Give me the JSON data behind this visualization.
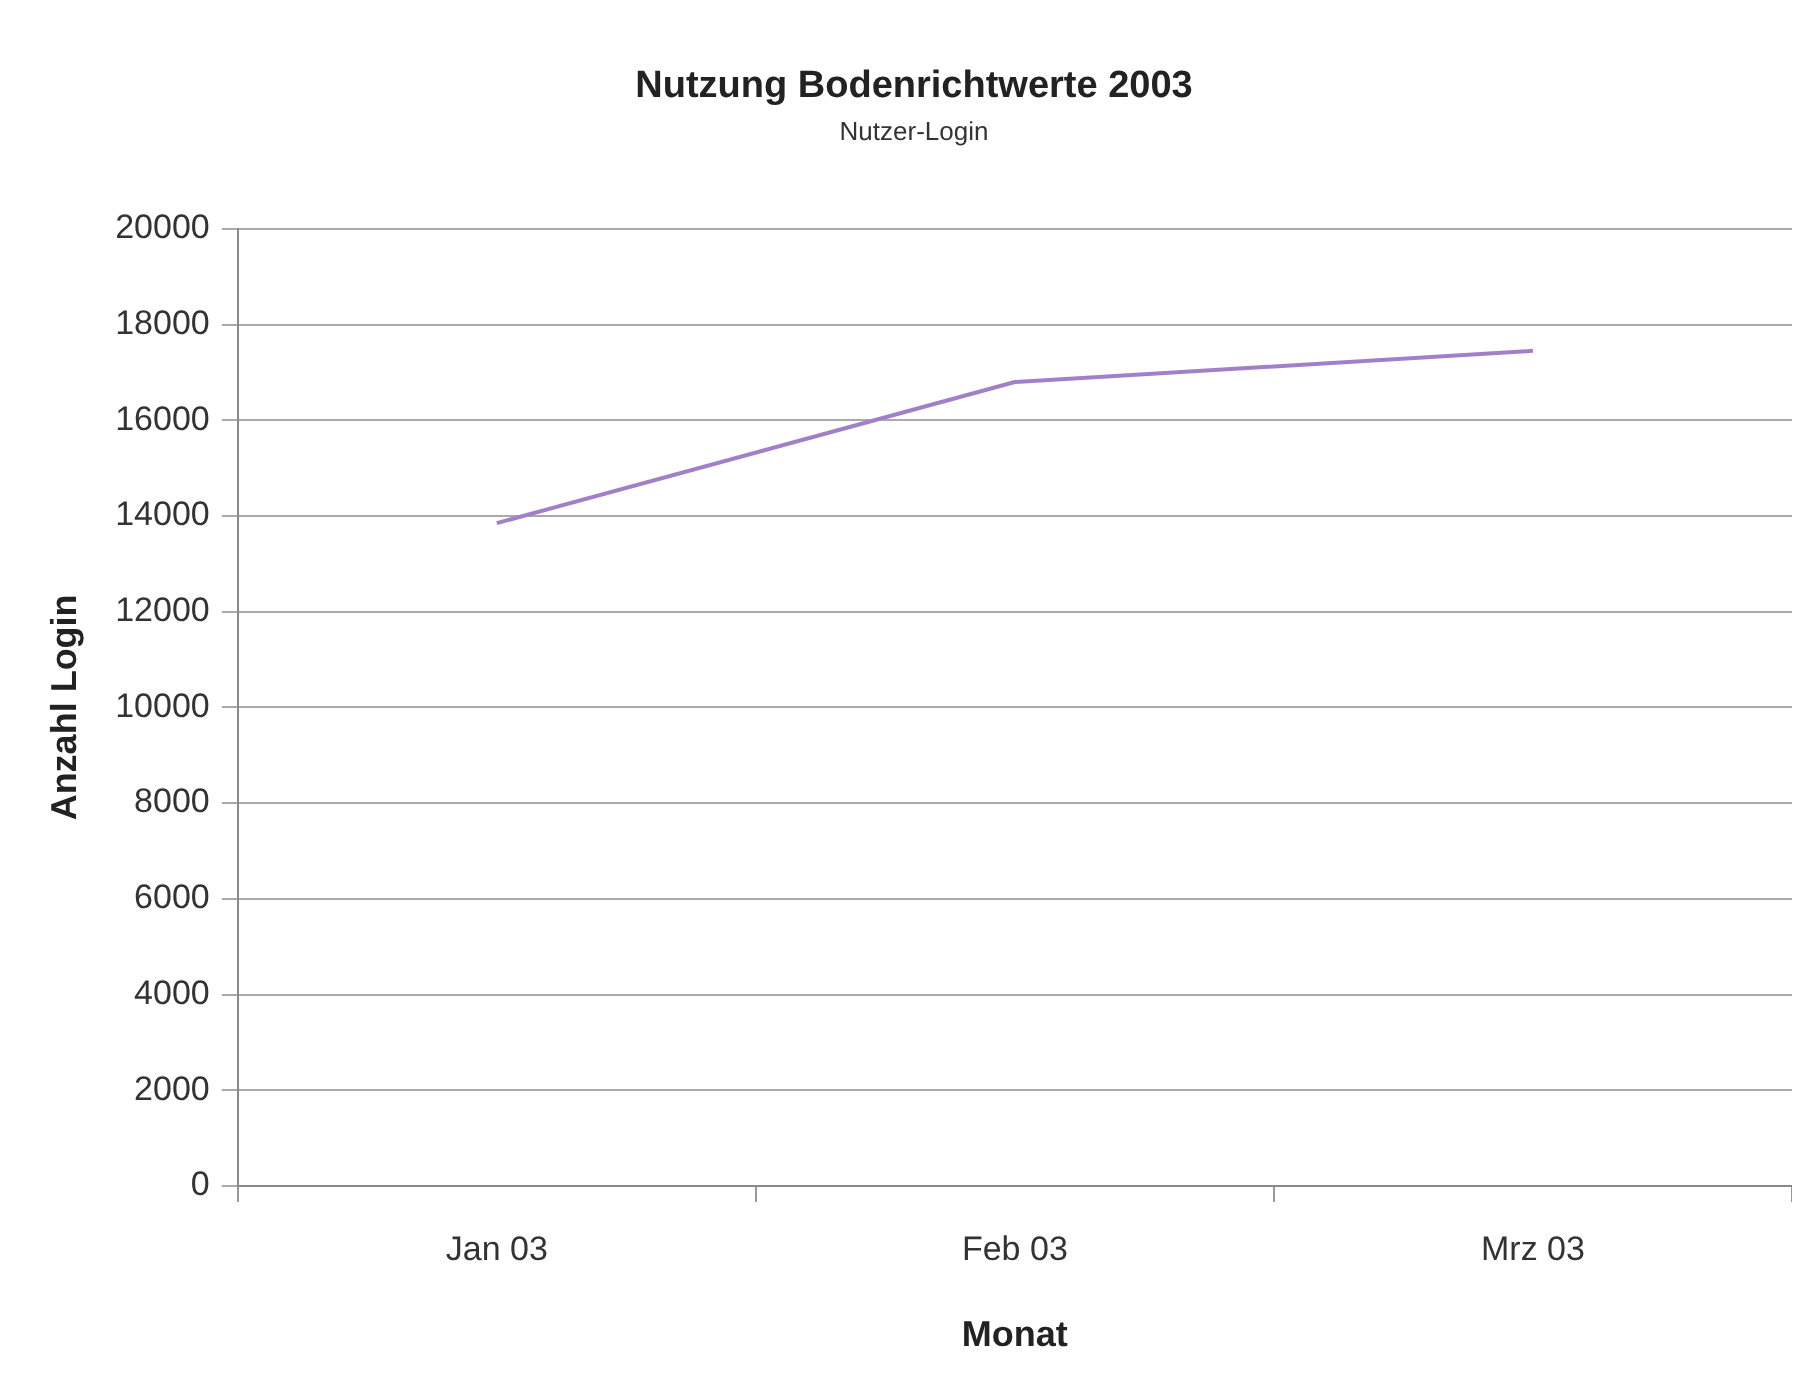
{
  "chart_data": {
    "type": "line",
    "title": "Nutzung Bodenrichtwerte 2003",
    "subtitle": "Nutzer-Login",
    "xlabel": "Monat",
    "ylabel": "Anzahl Login",
    "categories": [
      "Jan 03",
      "Feb 03",
      "Mrz 03"
    ],
    "series": [
      {
        "color": "#a080c8",
        "values": [
          13850,
          16800,
          17450
        ]
      }
    ],
    "ylim": [
      0,
      20000
    ],
    "yticks": [
      0,
      2000,
      4000,
      6000,
      8000,
      10000,
      12000,
      14000,
      16000,
      18000,
      20000
    ],
    "grid": "y",
    "legend": false,
    "marker": "none",
    "line_style": "solid"
  }
}
